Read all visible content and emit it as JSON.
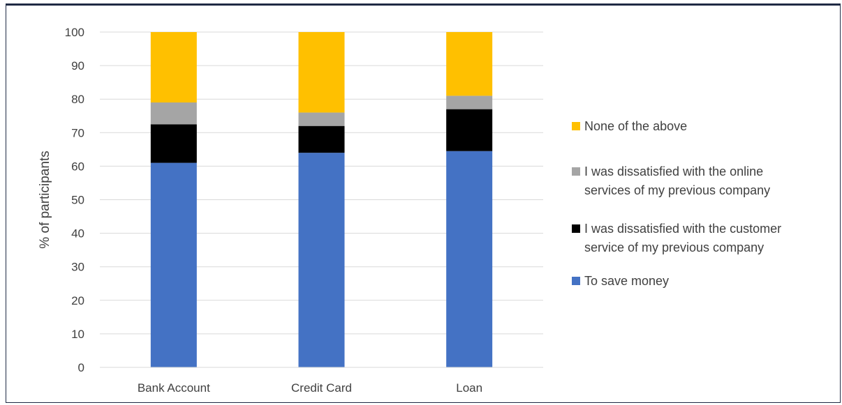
{
  "chart_data": {
    "type": "bar",
    "stacked": true,
    "title": "",
    "xlabel": "",
    "ylabel": "% of participants",
    "ylim": [
      0,
      100
    ],
    "yticks": [
      0,
      10,
      20,
      30,
      40,
      50,
      60,
      70,
      80,
      90,
      100
    ],
    "grid": true,
    "legend_position": "right",
    "categories": [
      "Bank Account",
      "Credit Card",
      "Loan"
    ],
    "series": [
      {
        "name": "To save money",
        "color": "#4472C4",
        "values": [
          61,
          64,
          64.5
        ]
      },
      {
        "name": "I was dissatisfied with the customer service of my previous company",
        "legend_lines": [
          "I was dissatisfied with the customer",
          "service of my previous company"
        ],
        "color": "#000000",
        "values": [
          11.5,
          8,
          12.5
        ]
      },
      {
        "name": "I was dissatisfied with the online services of my previous company",
        "legend_lines": [
          "I was dissatisfied with the online",
          "services of my previous company"
        ],
        "color": "#A5A5A5",
        "values": [
          6.5,
          4,
          4
        ]
      },
      {
        "name": "None of the above",
        "legend_lines": [
          "None of the above"
        ],
        "color": "#FFC000",
        "values": [
          21,
          24,
          19
        ]
      }
    ]
  }
}
